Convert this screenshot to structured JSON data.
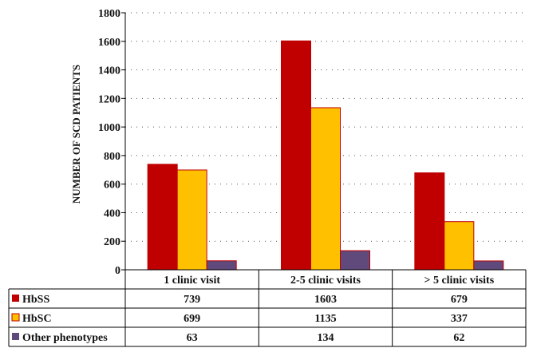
{
  "chart_data": {
    "type": "bar",
    "title": "",
    "xlabel": "",
    "ylabel": "NUMBER OF SCD PATIENTS",
    "ylim": [
      0,
      1800
    ],
    "yticks": [
      0,
      200,
      400,
      600,
      800,
      1000,
      1200,
      1400,
      1600,
      1800
    ],
    "grid": "horizontal-dotted",
    "legend": "data-table-left",
    "categories": [
      "1 clinic visit",
      "2-5 clinic visits",
      "> 5 clinic visits"
    ],
    "series": [
      {
        "name": "HbSS",
        "color": "#c00000",
        "values": [
          739,
          1603,
          679
        ]
      },
      {
        "name": "HbSC",
        "color": "#ffc000",
        "values": [
          699,
          1135,
          337
        ]
      },
      {
        "name": "Other phenotypes",
        "color": "#604a7b",
        "values": [
          63,
          134,
          62
        ]
      }
    ]
  }
}
